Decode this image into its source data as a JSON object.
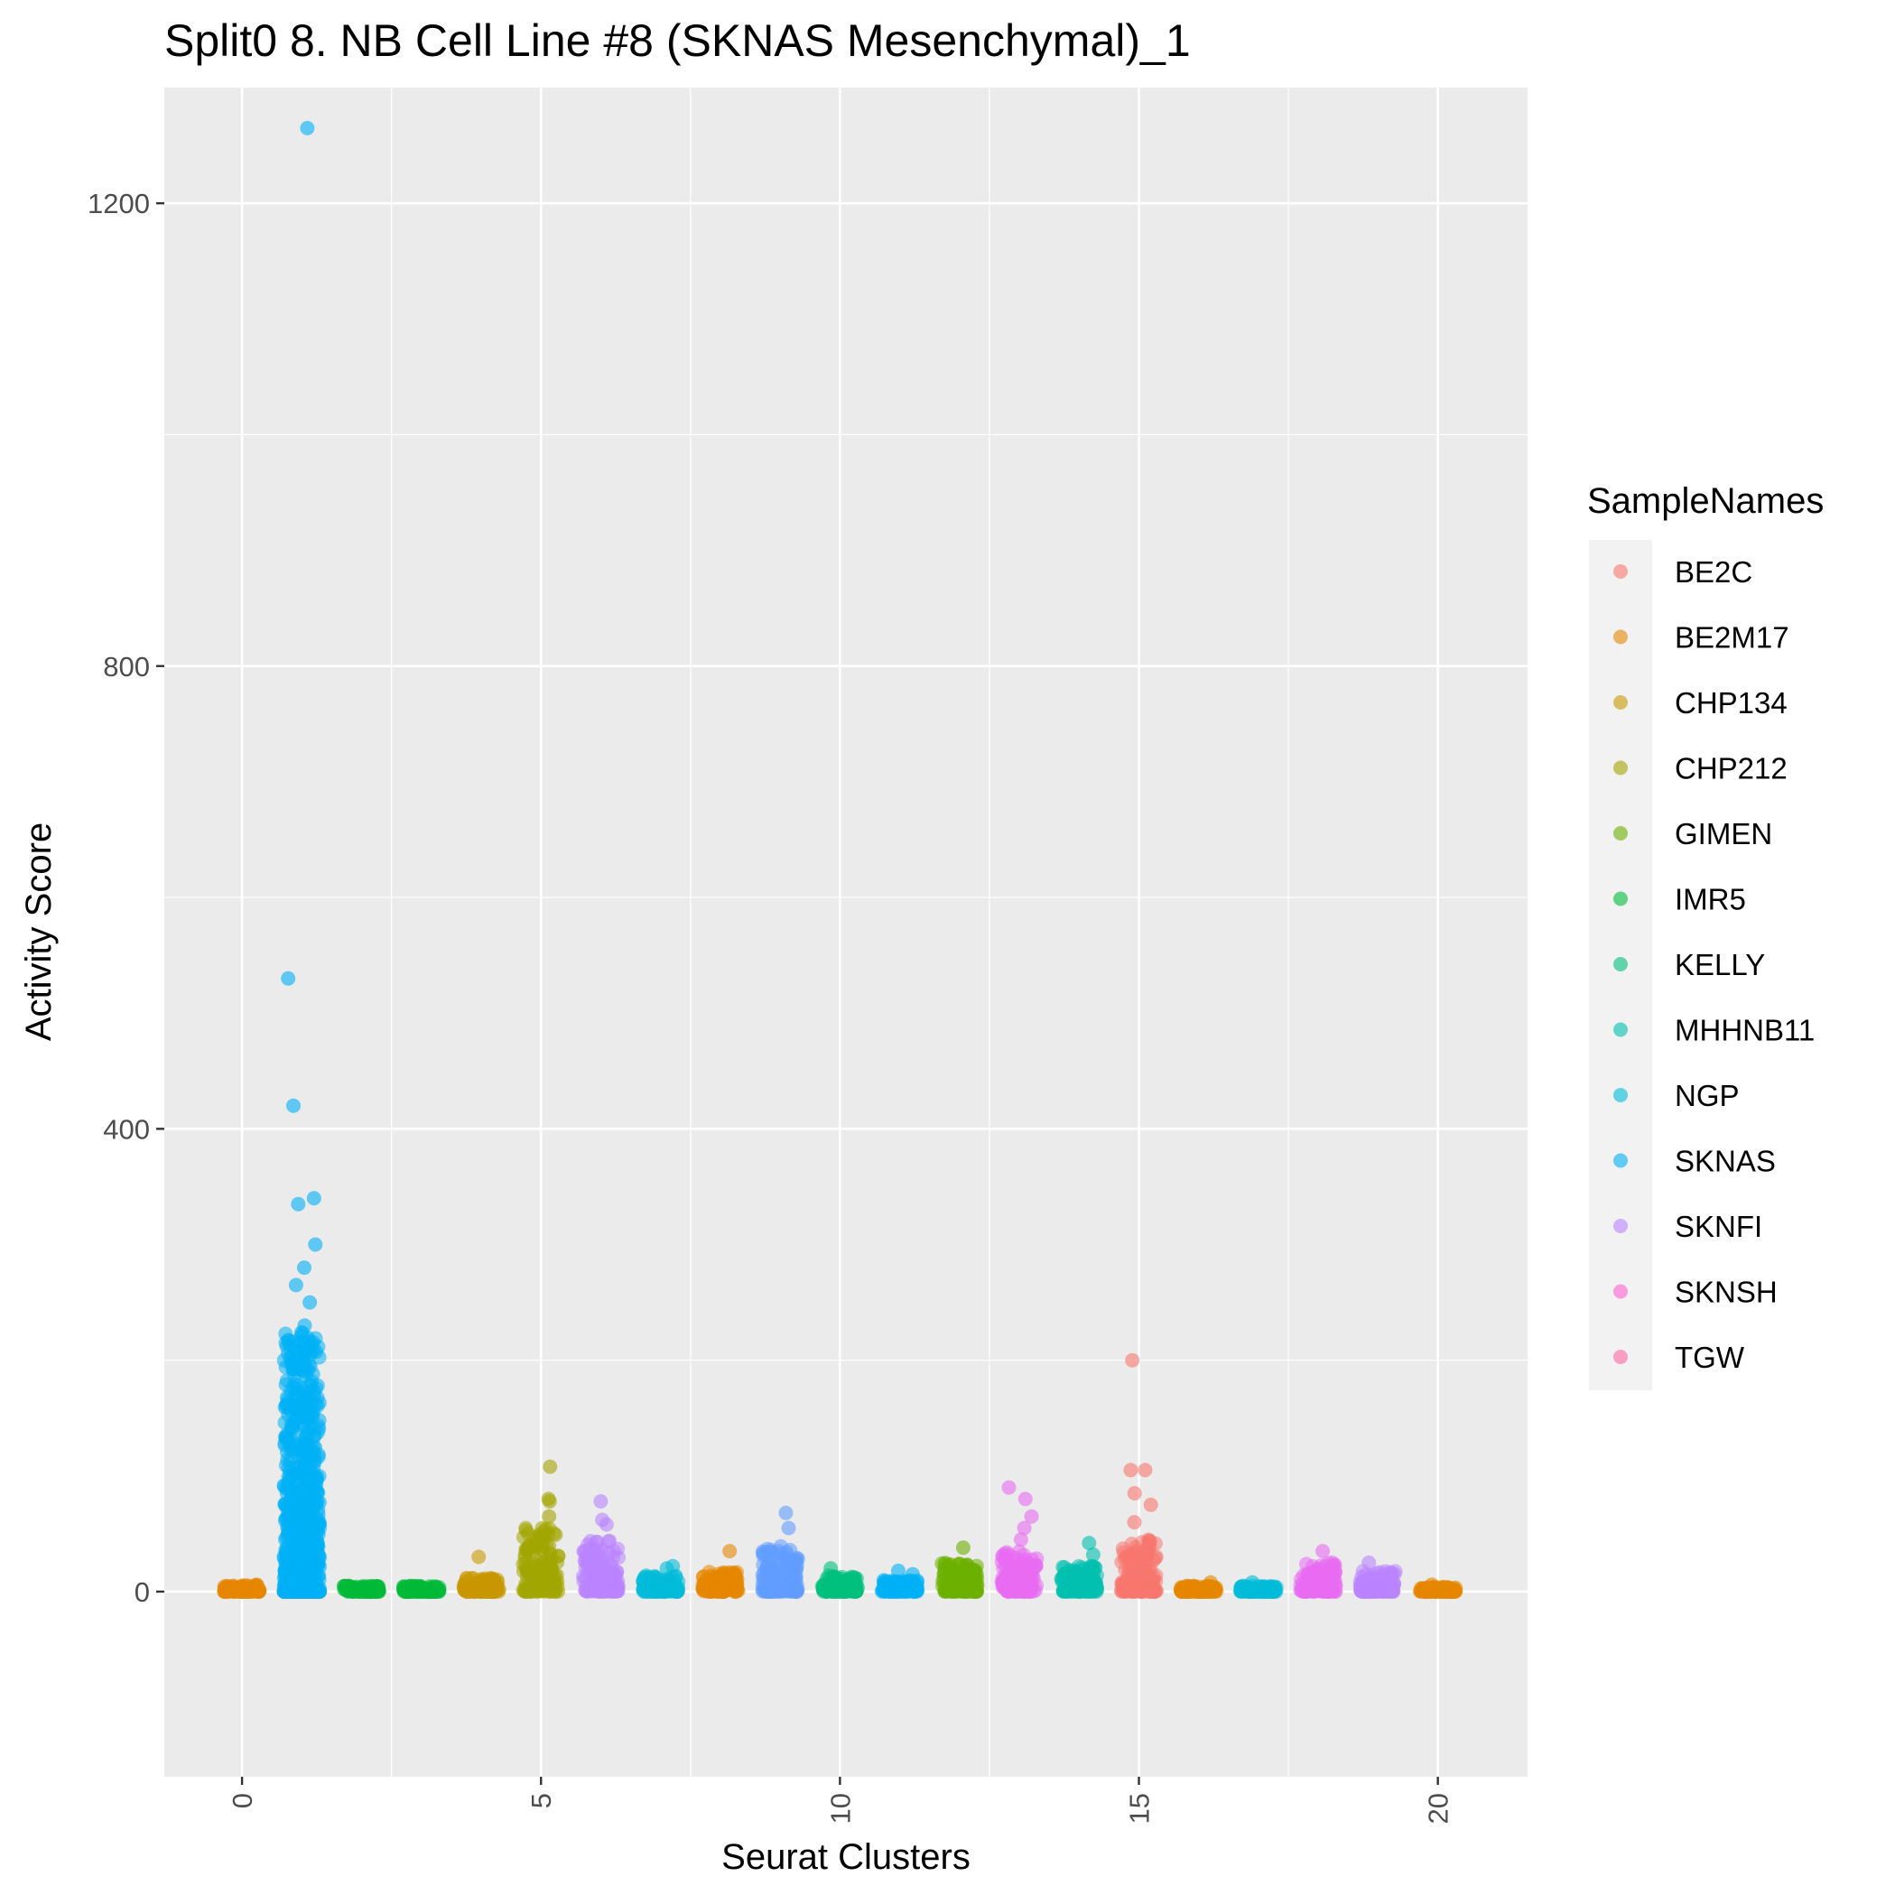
{
  "chart_data": {
    "type": "scatter",
    "subtype": "jitter-strip",
    "title": "Split0 8. NB Cell Line #8 (SKNAS Mesenchymal)_1",
    "xlabel": "Seurat Clusters",
    "ylabel": "Activity Score",
    "xlim": [
      -1.3,
      21.5
    ],
    "ylim": [
      -160,
      1300
    ],
    "x_ticks": [
      0,
      5,
      10,
      15,
      20
    ],
    "y_ticks": [
      0,
      400,
      800,
      1200
    ],
    "grid": true,
    "legend": {
      "title": "SampleNames",
      "placement": "right"
    },
    "series": [
      {
        "name": "BE2C",
        "color": "#F8766D",
        "clusters": [
          {
            "cluster": 1,
            "median": 0,
            "max": 0,
            "outliers": [
              0
            ]
          },
          {
            "cluster": 15,
            "median": 12,
            "max": 45,
            "outliers": [
              60,
              75,
              85,
              105,
              105,
              200
            ]
          }
        ]
      },
      {
        "name": "BE2M17",
        "color": "#E58700",
        "clusters": [
          {
            "cluster": 0,
            "median": 1,
            "max": 6,
            "outliers": []
          },
          {
            "cluster": 8,
            "median": 3,
            "max": 18,
            "outliers": [
              35
            ]
          },
          {
            "cluster": 16,
            "median": 1,
            "max": 5,
            "outliers": [
              8
            ]
          },
          {
            "cluster": 20,
            "median": 1,
            "max": 4,
            "outliers": [
              6
            ]
          }
        ]
      },
      {
        "name": "CHP134",
        "color": "#C99800",
        "clusters": [
          {
            "cluster": 4,
            "median": 3,
            "max": 12,
            "outliers": [
              30
            ]
          }
        ]
      },
      {
        "name": "CHP212",
        "color": "#A3A500",
        "clusters": [
          {
            "cluster": 5,
            "median": 12,
            "max": 55,
            "outliers": [
              65,
              78,
              80,
              108
            ]
          }
        ]
      },
      {
        "name": "GIMEN",
        "color": "#6BB100",
        "clusters": [
          {
            "cluster": 12,
            "median": 8,
            "max": 25,
            "outliers": [
              38
            ]
          }
        ]
      },
      {
        "name": "IMR5",
        "color": "#00BA38",
        "clusters": [
          {
            "cluster": 2,
            "median": 1,
            "max": 5,
            "outliers": []
          },
          {
            "cluster": 3,
            "median": 1,
            "max": 5,
            "outliers": []
          }
        ]
      },
      {
        "name": "KELLY",
        "color": "#00BF7D",
        "clusters": [
          {
            "cluster": 10,
            "median": 4,
            "max": 14,
            "outliers": [
              20
            ]
          }
        ]
      },
      {
        "name": "MHHNB11",
        "color": "#00C0AF",
        "clusters": [
          {
            "cluster": 14,
            "median": 6,
            "max": 22,
            "outliers": [
              32,
              42
            ]
          }
        ]
      },
      {
        "name": "NGP",
        "color": "#00BCD8",
        "clusters": [
          {
            "cluster": 7,
            "median": 4,
            "max": 14,
            "outliers": [
              20,
              22
            ]
          },
          {
            "cluster": 17,
            "median": 1,
            "max": 5,
            "outliers": [
              8
            ]
          }
        ]
      },
      {
        "name": "SKNAS",
        "color": "#00B0F6",
        "clusters": [
          {
            "cluster": 1,
            "median": 90,
            "max": 225,
            "outliers": [
              230,
              250,
              265,
              280,
              300,
              335,
              340,
              420,
              530,
              1265
            ]
          },
          {
            "cluster": 11,
            "median": 3,
            "max": 10,
            "outliers": [
              15,
              18
            ]
          }
        ]
      },
      {
        "name": "SKNFI",
        "color": "#619CFF",
        "clusters": [
          {
            "cluster": 9,
            "median": 10,
            "max": 40,
            "outliers": [
              55,
              68
            ]
          }
        ]
      },
      {
        "name": "SKNSH",
        "color": "#B983FF",
        "clusters": [
          {
            "cluster": 6,
            "median": 10,
            "max": 45,
            "outliers": [
              58,
              62,
              78
            ]
          },
          {
            "cluster": 19,
            "median": 6,
            "max": 18,
            "outliers": [
              25
            ]
          }
        ]
      },
      {
        "name": "TGW",
        "color": "#E76BF3",
        "clusters": [
          {
            "cluster": 13,
            "median": 10,
            "max": 35,
            "outliers": [
              45,
              55,
              65,
              80,
              90
            ]
          },
          {
            "cluster": 18,
            "median": 8,
            "max": 25,
            "outliers": [
              35
            ]
          }
        ]
      }
    ],
    "legend_colors": [
      "#F8766D",
      "#E58700",
      "#C99800",
      "#A3A500",
      "#6BB100",
      "#00BA38",
      "#00BF7D",
      "#00C0AF",
      "#00BCD8",
      "#00B0F6",
      "#B983FF",
      "#FD61D1",
      "#FF67A4"
    ]
  }
}
